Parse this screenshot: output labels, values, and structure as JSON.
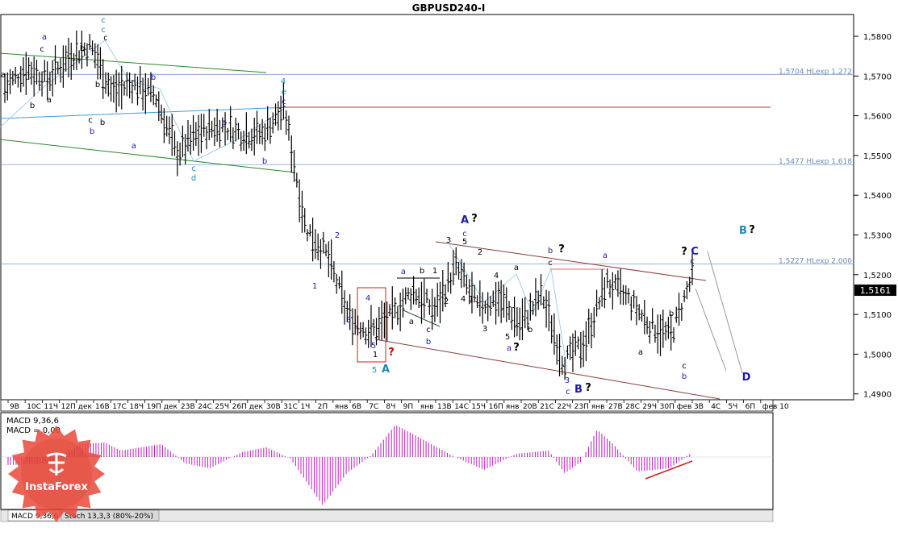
{
  "window": {
    "title": "GBPUSD240-I"
  },
  "price_axis": {
    "ticks": [
      "1,5800",
      "1,5700",
      "1,5600",
      "1,5500",
      "1,5400",
      "1,5300",
      "1,5200",
      "1,5100",
      "1,5000",
      "1,4900"
    ],
    "tick_values": [
      1.58,
      1.57,
      1.56,
      1.55,
      1.54,
      1.53,
      1.52,
      1.51,
      1.5,
      1.49
    ],
    "current_price_label": "1,5161",
    "current_price": 1.5161
  },
  "time_axis": {
    "labels": [
      "9В",
      "10С",
      "11Ч",
      "12П",
      "дек",
      "16В",
      "17С",
      "18Ч",
      "19П",
      "дек",
      "23В",
      "24С",
      "25Ч",
      "26П",
      "дек",
      "30В",
      "31С",
      "1Ч",
      "2П",
      "янв",
      "6В",
      "7С",
      "8Ч",
      "9П",
      "янв",
      "13В",
      "14С",
      "15Ч",
      "16П",
      "янв",
      "20В",
      "21С",
      "22Ч",
      "23П",
      "янв",
      "27В",
      "28С",
      "29Ч",
      "30П",
      "фев",
      "3В",
      "4С",
      "5Ч",
      "6П",
      "фев 10"
    ]
  },
  "fib_levels": [
    {
      "label": "1,5704 HLexp 1,272",
      "value": 1.5704
    },
    {
      "label": "1,5477 HLexp 1,618",
      "value": 1.5477
    },
    {
      "label": "1,5227 HLexp 2,000",
      "value": 1.5227
    }
  ],
  "wave_labels": [
    {
      "text": "c",
      "x": 128,
      "y": 28,
      "color": "#1f8ab8"
    },
    {
      "text": "c",
      "x": 128,
      "y": 40,
      "color": "#1f8ab8"
    },
    {
      "text": "c",
      "x": 131,
      "y": 50,
      "color": "#000000"
    },
    {
      "text": "a",
      "x": 55,
      "y": 49,
      "color": "#1a1ab0"
    },
    {
      "text": "c",
      "x": 52,
      "y": 64,
      "color": "#000000"
    },
    {
      "text": "b",
      "x": 102,
      "y": 63,
      "color": "#000000"
    },
    {
      "text": "a",
      "x": 4,
      "y": 96,
      "color": "#000000"
    },
    {
      "text": "b",
      "x": 40,
      "y": 134,
      "color": "#000000"
    },
    {
      "text": "a",
      "x": 61,
      "y": 127,
      "color": "#000000"
    },
    {
      "text": "b",
      "x": 121,
      "y": 108,
      "color": "#000000"
    },
    {
      "text": "c",
      "x": 112,
      "y": 152,
      "color": "#000000"
    },
    {
      "text": "b",
      "x": 114,
      "y": 166,
      "color": "#1a1ab0"
    },
    {
      "text": "b",
      "x": 127,
      "y": 155,
      "color": "#000000"
    },
    {
      "text": "b",
      "x": 190,
      "y": 99,
      "color": "#1a1ab0"
    },
    {
      "text": "a",
      "x": 166,
      "y": 184,
      "color": "#1a1ab0"
    },
    {
      "text": "4",
      "x": 351,
      "y": 104,
      "color": "#1f8ab8"
    },
    {
      "text": "e",
      "x": 352,
      "y": 117,
      "color": "#1f8ab8"
    },
    {
      "text": "c",
      "x": 352,
      "y": 129,
      "color": "#1a1ab0"
    },
    {
      "text": "a",
      "x": 278,
      "y": 155,
      "color": "#1a1ab0"
    },
    {
      "text": "b",
      "x": 328,
      "y": 203,
      "color": "#1a1ab0"
    },
    {
      "text": "c",
      "x": 240,
      "y": 212,
      "color": "#1f8ab8"
    },
    {
      "text": "d",
      "x": 240,
      "y": 224,
      "color": "#1f8ab8"
    },
    {
      "text": "2",
      "x": 418,
      "y": 295,
      "color": "#1a1ab0"
    },
    {
      "text": "1",
      "x": 390,
      "y": 358,
      "color": "#1a1ab0"
    },
    {
      "text": "3",
      "x": 432,
      "y": 400,
      "color": "#1a1ab0"
    },
    {
      "text": "4",
      "x": 456,
      "y": 373,
      "color": "#1a1ab0"
    },
    {
      "text": "5",
      "x": 463,
      "y": 432,
      "color": "#1a1ab0"
    },
    {
      "text": "1",
      "x": 465,
      "y": 443,
      "color": "#000000"
    },
    {
      "text": "5",
      "x": 464,
      "y": 462,
      "color": "#1f8ab8"
    },
    {
      "text": "A",
      "x": 478,
      "y": 462,
      "color": "#1f8ab8"
    },
    {
      "text": "?",
      "x": 485,
      "y": 441,
      "color": "#cc0000"
    },
    {
      "text": "a",
      "x": 500,
      "y": 340,
      "color": "#1a1ab0"
    },
    {
      "text": "b",
      "x": 523,
      "y": 339,
      "color": "#000000"
    },
    {
      "text": "1",
      "x": 539,
      "y": 339,
      "color": "#000000"
    },
    {
      "text": "a",
      "x": 510,
      "y": 402,
      "color": "#000000"
    },
    {
      "text": "c",
      "x": 531,
      "y": 412,
      "color": "#000000"
    },
    {
      "text": "b",
      "x": 531,
      "y": 427,
      "color": "#1a1ab0"
    },
    {
      "text": "2",
      "x": 553,
      "y": 377,
      "color": "#000000"
    },
    {
      "text": "3",
      "x": 556,
      "y": 301,
      "color": "#000000"
    },
    {
      "text": "A",
      "x": 576,
      "y": 277,
      "color": "#1a1ab0"
    },
    {
      "text": "?",
      "x": 588,
      "y": 275,
      "color": "#000000"
    },
    {
      "text": "c",
      "x": 576,
      "y": 293,
      "color": "#1a1ab0"
    },
    {
      "text": "5",
      "x": 576,
      "y": 303,
      "color": "#000000"
    },
    {
      "text": "2",
      "x": 595,
      "y": 316,
      "color": "#000000"
    },
    {
      "text": "4",
      "x": 574,
      "y": 374,
      "color": "#000000"
    },
    {
      "text": "1",
      "x": 584,
      "y": 374,
      "color": "#000000"
    },
    {
      "text": "4",
      "x": 615,
      "y": 345,
      "color": "#000000"
    },
    {
      "text": "a",
      "x": 640,
      "y": 335,
      "color": "#000000"
    },
    {
      "text": "3",
      "x": 601,
      "y": 411,
      "color": "#000000"
    },
    {
      "text": "5",
      "x": 629,
      "y": 421,
      "color": "#000000"
    },
    {
      "text": "b",
      "x": 657,
      "y": 412,
      "color": "#000000"
    },
    {
      "text": "a",
      "x": 631,
      "y": 435,
      "color": "#1a1ab0"
    },
    {
      "text": "?",
      "x": 640,
      "y": 435,
      "color": "#000000"
    },
    {
      "text": "b",
      "x": 682,
      "y": 314,
      "color": "#1a1ab0"
    },
    {
      "text": "?",
      "x": 696,
      "y": 313,
      "color": "#000000"
    },
    {
      "text": "c",
      "x": 682,
      "y": 329,
      "color": "#000000"
    },
    {
      "text": "3",
      "x": 703,
      "y": 475,
      "color": "#1a1ab0"
    },
    {
      "text": "c",
      "x": 704,
      "y": 489,
      "color": "#1a1ab0"
    },
    {
      "text": "B",
      "x": 717,
      "y": 487,
      "color": "#1a1ab0"
    },
    {
      "text": "?",
      "x": 729,
      "y": 485,
      "color": "#000000"
    },
    {
      "text": "a",
      "x": 750,
      "y": 320,
      "color": "#1a1ab0"
    },
    {
      "text": "a",
      "x": 794,
      "y": 440,
      "color": "#000000"
    },
    {
      "text": "b",
      "x": 832,
      "y": 392,
      "color": "#000000"
    },
    {
      "text": "c",
      "x": 848,
      "y": 457,
      "color": "#000000"
    },
    {
      "text": "b",
      "x": 848,
      "y": 470,
      "color": "#1a1ab0"
    },
    {
      "text": "?",
      "x": 848,
      "y": 316,
      "color": "#000000"
    },
    {
      "text": "C",
      "x": 861,
      "y": 316,
      "color": "#1a1ab0"
    },
    {
      "text": "c",
      "x": 858,
      "y": 327,
      "color": "#1a1ab0"
    },
    {
      "text": "B",
      "x": 921,
      "y": 290,
      "color": "#1f8ab8"
    },
    {
      "text": "?",
      "x": 932,
      "y": 289,
      "color": "#000000"
    },
    {
      "text": "D",
      "x": 925,
      "y": 472,
      "color": "#1a1ab0"
    }
  ],
  "macd_panel": {
    "label_line1": "MACD 9,36,6",
    "label_line2": "MACD = 0,00"
  },
  "bottom_tabs": [
    {
      "label": "MACD 9,36,6"
    },
    {
      "label": "Stoch 13,3,3 (80%-20%)"
    }
  ],
  "watermark": {
    "brand": "InstaForex"
  },
  "colors": {
    "bars": "#000000",
    "fib_line": "#7a9cc8",
    "resistance_line": "#cc3333",
    "green_channel": "#2a8a2a",
    "blue_channel": "#3aa0d8",
    "brown_channel": "#8b3a3a",
    "macd_positive": "#b21fb2",
    "macd_negative": "#c21fc2",
    "wave_blue": "#1a1ab0",
    "wave_teal": "#1f8ab8"
  },
  "chart_data": {
    "type": "line",
    "title": "GBPUSD240-I",
    "xlabel": "",
    "ylabel": "",
    "ylim": [
      1.487,
      1.5825
    ],
    "x": [
      "9В",
      "10С",
      "11Ч",
      "12П",
      "16В",
      "17С",
      "18Ч",
      "19П",
      "23В",
      "24С",
      "25Ч",
      "26П",
      "30В",
      "31С",
      "1Ч",
      "2П",
      "6В",
      "7С",
      "8Ч",
      "9П",
      "13В",
      "14С",
      "15Ч",
      "16П",
      "20В",
      "21С",
      "22Ч",
      "23П",
      "27В",
      "28С",
      "29Ч",
      "30П",
      "3В"
    ],
    "series": [
      {
        "values": [
          1.567,
          1.572,
          1.569,
          1.575,
          1.5775,
          1.566,
          1.568,
          1.565,
          1.5505,
          1.5555,
          1.5575,
          1.5555,
          1.5555,
          1.562,
          1.532,
          1.525,
          1.5095,
          1.5055,
          1.5095,
          1.516,
          1.511,
          1.522,
          1.512,
          1.514,
          1.5075,
          1.515,
          1.498,
          1.503,
          1.518,
          1.514,
          1.5075,
          1.5045,
          1.5195
        ]
      }
    ],
    "current": 1.5161
  }
}
